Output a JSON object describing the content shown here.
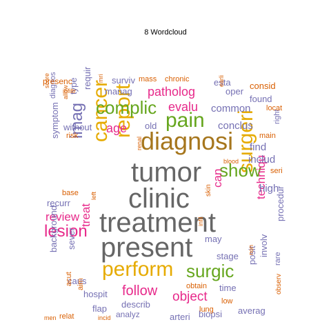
{
  "title": "8  Wordcloud",
  "palette": {
    "grey": "#666666",
    "gold": "#a6761d",
    "purple": "#7570b3",
    "magenta": "#e7298a",
    "green": "#66a61e",
    "yellow": "#e6ab02",
    "orange": "#d95f02"
  },
  "words": [
    {
      "text": "treatment",
      "color": "grey"
    },
    {
      "text": "present",
      "color": "grey"
    },
    {
      "text": "tumor",
      "color": "grey"
    },
    {
      "text": "clinic",
      "color": "grey"
    },
    {
      "text": "diagnosi",
      "color": "gold"
    },
    {
      "text": "perform",
      "color": "yellow"
    },
    {
      "text": "report",
      "color": "yellow"
    },
    {
      "text": "cancer",
      "color": "yellow"
    },
    {
      "text": "surgeri",
      "color": "yellow"
    },
    {
      "text": "complic",
      "color": "green"
    },
    {
      "text": "pain",
      "color": "green"
    },
    {
      "text": "show",
      "color": "green"
    },
    {
      "text": "surgic",
      "color": "green"
    },
    {
      "text": "imag",
      "color": "purple"
    },
    {
      "text": "lesion",
      "color": "magenta"
    },
    {
      "text": "follow",
      "color": "magenta"
    },
    {
      "text": "object",
      "color": "magenta"
    },
    {
      "text": "patholog",
      "color": "magenta"
    },
    {
      "text": "evalu",
      "color": "magenta"
    },
    {
      "text": "age",
      "color": "magenta"
    },
    {
      "text": "review",
      "color": "magenta"
    },
    {
      "text": "treat",
      "color": "magenta"
    },
    {
      "text": "techniqu",
      "color": "magenta"
    },
    {
      "text": "can",
      "color": "magenta"
    },
    {
      "text": "common",
      "color": "purple"
    },
    {
      "text": "conclus",
      "color": "purple"
    },
    {
      "text": "includ",
      "color": "purple"
    },
    {
      "text": "find",
      "color": "purple"
    },
    {
      "text": "high",
      "color": "purple"
    },
    {
      "text": "manag",
      "color": "purple"
    },
    {
      "text": "surviv",
      "color": "purple"
    },
    {
      "text": "without",
      "color": "purple"
    },
    {
      "text": "old",
      "color": "purple"
    },
    {
      "text": "symptom",
      "color": "purple"
    },
    {
      "text": "recurr",
      "color": "purple"
    },
    {
      "text": "sever",
      "color": "purple"
    },
    {
      "text": "caus",
      "color": "purple"
    },
    {
      "text": "background",
      "color": "purple"
    },
    {
      "text": "hospit",
      "color": "purple"
    },
    {
      "text": "describ",
      "color": "purple"
    },
    {
      "text": "analyz",
      "color": "purple"
    },
    {
      "text": "arteri",
      "color": "purple"
    },
    {
      "text": "biopsi",
      "color": "purple"
    },
    {
      "text": "averag",
      "color": "purple"
    },
    {
      "text": "flap",
      "color": "purple"
    },
    {
      "text": "posit",
      "color": "purple"
    },
    {
      "text": "involv",
      "color": "purple"
    },
    {
      "text": "procedur",
      "color": "purple"
    },
    {
      "text": "may",
      "color": "purple"
    },
    {
      "text": "stage",
      "color": "purple"
    },
    {
      "text": "time",
      "color": "purple"
    },
    {
      "text": "oper",
      "color": "purple"
    },
    {
      "text": "esta",
      "color": "purple"
    },
    {
      "text": "found",
      "color": "purple"
    },
    {
      "text": "type",
      "color": "purple"
    },
    {
      "text": "requir",
      "color": "purple"
    },
    {
      "text": "diagnos",
      "color": "purple"
    },
    {
      "text": "right",
      "color": "purple"
    },
    {
      "text": "rare",
      "color": "purple"
    },
    {
      "text": "seri",
      "color": "orange"
    },
    {
      "text": "consid",
      "color": "orange"
    },
    {
      "text": "locat",
      "color": "orange"
    },
    {
      "text": "presenc",
      "color": "orange"
    },
    {
      "text": "mass",
      "color": "orange"
    },
    {
      "text": "chronic",
      "color": "orange"
    },
    {
      "text": "risk",
      "color": "orange"
    },
    {
      "text": "base",
      "color": "orange"
    },
    {
      "text": "obtain",
      "color": "orange"
    },
    {
      "text": "low",
      "color": "orange"
    },
    {
      "text": "lung",
      "color": "orange"
    },
    {
      "text": "acut",
      "color": "orange"
    },
    {
      "text": "relat",
      "color": "orange"
    },
    {
      "text": "men",
      "color": "orange"
    },
    {
      "text": "incid",
      "color": "orange"
    },
    {
      "text": "observ",
      "color": "orange"
    },
    {
      "text": "blood",
      "color": "orange"
    },
    {
      "text": "main",
      "color": "orange"
    },
    {
      "text": "earli",
      "color": "orange"
    },
    {
      "text": "score",
      "color": "orange"
    },
    {
      "text": "infiltr",
      "color": "orange"
    },
    {
      "text": "allow",
      "color": "orange"
    },
    {
      "text": "skin",
      "color": "orange"
    },
    {
      "text": "left",
      "color": "orange"
    },
    {
      "text": "renal",
      "color": "orange"
    },
    {
      "text": "mri",
      "color": "orange"
    },
    {
      "text": "infil",
      "color": "orange"
    },
    {
      "text": "non",
      "color": "orange"
    },
    {
      "text": "aim",
      "color": "orange"
    }
  ]
}
